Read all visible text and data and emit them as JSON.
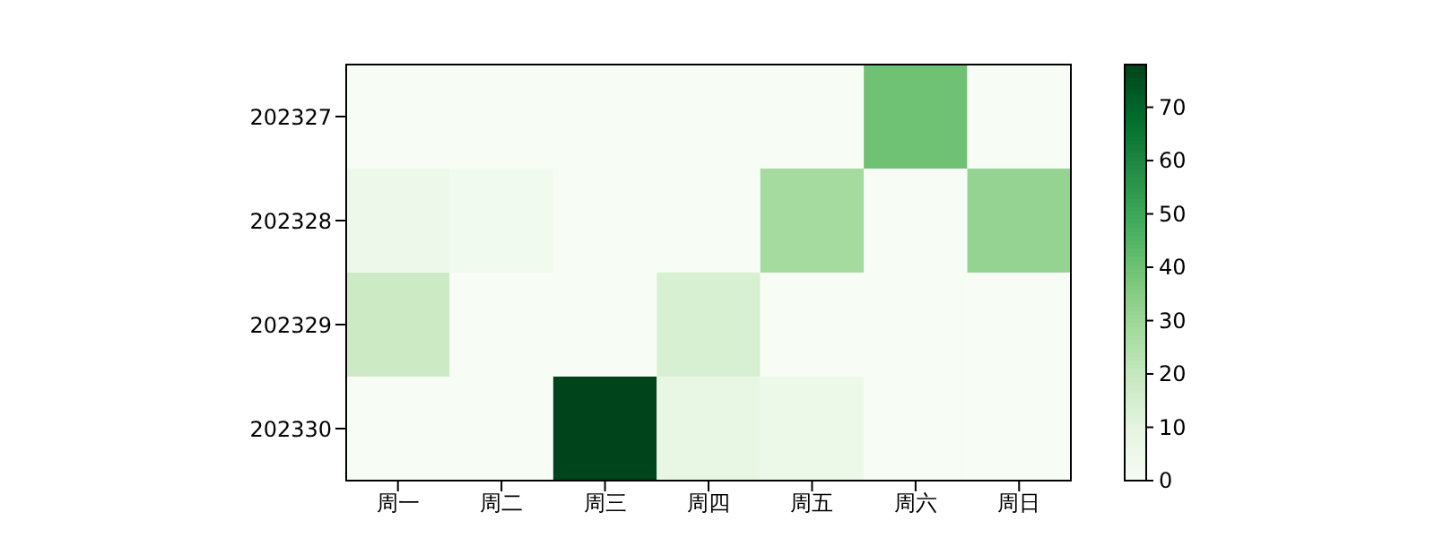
{
  "chart_data": {
    "type": "heatmap",
    "categories": [
      "周一",
      "周二",
      "周三",
      "周四",
      "周五",
      "周六",
      "周日"
    ],
    "y_categories": [
      "202327",
      "202328",
      "202329",
      "202330"
    ],
    "cells": [
      [
        0,
        0,
        0,
        0,
        0,
        40,
        0
      ],
      [
        5,
        3,
        0,
        0,
        28,
        0,
        32
      ],
      [
        18,
        0,
        0,
        14,
        0,
        0,
        0
      ],
      [
        0,
        0,
        78,
        8,
        6,
        0,
        0
      ]
    ],
    "clim": [
      0,
      78
    ],
    "cticks": [
      0,
      10,
      20,
      30,
      40,
      50,
      60,
      70
    ]
  }
}
